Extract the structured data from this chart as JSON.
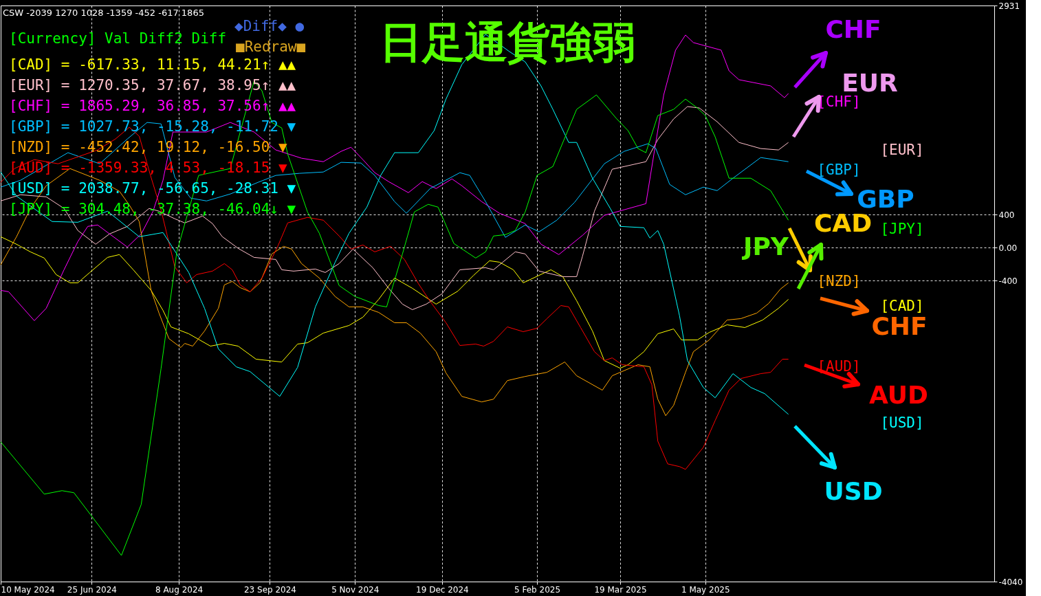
{
  "chart_data": {
    "type": "line",
    "title": "日足通貨強弱",
    "xlim": [
      "2024-05-10",
      "2025-09-24"
    ],
    "ylim": [
      -4040,
      2931
    ],
    "xticks": [
      {
        "value": "2024-05-10",
        "label": "10 May 2024"
      },
      {
        "value": "2024-06-25",
        "label": "25 Jun 2024"
      },
      {
        "value": "2024-08-08",
        "label": "8 Aug 2024"
      },
      {
        "value": "2024-09-23",
        "label": "23 Sep 2024"
      },
      {
        "value": "2024-11-05",
        "label": "5 Nov 2024"
      },
      {
        "value": "2024-12-19",
        "label": "19 Dec 2024"
      },
      {
        "value": "2025-02-05",
        "label": "5 Feb 2025"
      },
      {
        "value": "2025-03-19",
        "label": "19 Mar 2025"
      },
      {
        "value": "2025-05-01",
        "label": "1 May 2025"
      }
    ],
    "yticks": [
      2931,
      400,
      {
        "value": 0,
        "label": "0.00"
      },
      -400,
      -4040
    ],
    "grid": true,
    "legend": false,
    "marker": "none",
    "line_style": "solid",
    "annotations": [
      "CSW -2039 1270 1028 -1359 -452 -617 1865",
      "[Currency] Val Diff2 Diff",
      "[CAD] = -617.33, 11.15, 44.21↑ ▲▲",
      "[EUR] = 1270.35, 37.67, 38.95↑ ▲▲",
      "[CHF] = 1865.29, 36.85, 37.56↑ ▲▲",
      "[GBP] = 1027.73, -15.28, -11.72 ▼",
      "[NZD] = -452.42, 19.12, -16.50 ▼",
      "[AUD] = -1359.33, 4.53, -18.15 ▼",
      "[USD] = 2038.77, -56.65, -28.31 ▼",
      "[JPY] = 304.48, -37.38, -46.04↓ ▼",
      "◆Diff◆ ●",
      "■Redraw■",
      "CHF",
      "EUR",
      "GBP",
      "CAD",
      "JPY",
      "CHF",
      "AUD",
      "USD"
    ],
    "series": [
      {
        "name": "[CAD]",
        "color": "#ffff00",
        "x": [
          "2024-05-10",
          "2024-05-18",
          "2024-05-25",
          "2024-06-01",
          "2024-06-07",
          "2024-06-14",
          "2024-06-18",
          "2024-06-24",
          "2024-07-03",
          "2024-07-09",
          "2024-07-16",
          "2024-07-25",
          "2024-07-31",
          "2024-08-04",
          "2024-08-13",
          "2024-08-24",
          "2024-08-31",
          "2024-09-07",
          "2024-09-16",
          "2024-09-29",
          "2024-10-07",
          "2024-10-12",
          "2024-10-20",
          "2024-11-02",
          "2024-11-09",
          "2024-11-17",
          "2024-11-25",
          "2024-12-04",
          "2024-12-16",
          "2024-12-27",
          "2025-01-04",
          "2025-01-12",
          "2025-01-17",
          "2025-01-24",
          "2025-01-29",
          "2025-02-12",
          "2025-02-18",
          "2025-02-25",
          "2025-03-05",
          "2025-03-11",
          "2025-03-19",
          "2025-03-23",
          "2025-03-31",
          "2025-04-07",
          "2025-04-15",
          "2025-04-19",
          "2025-04-27",
          "2025-05-03",
          "2025-05-12",
          "2025-05-21",
          "2025-05-30",
          "2025-06-07",
          "2025-06-12"
        ],
        "values": [
          133,
          42,
          -50,
          -125,
          -325,
          -425,
          -425,
          -300,
          -117,
          -83,
          -267,
          -516,
          -758,
          -958,
          -1041,
          -1191,
          -1158,
          -1191,
          -1349,
          -1383,
          -1166,
          -1150,
          -1033,
          -941,
          -841,
          -625,
          -367,
          -491,
          -683,
          -525,
          -333,
          -158,
          -175,
          -267,
          -425,
          -267,
          -350,
          -641,
          -1008,
          -1366,
          -1458,
          -1416,
          -1258,
          -1041,
          -983,
          -1116,
          -1116,
          -1025,
          -933,
          -966,
          -875,
          -733,
          -625
        ]
      },
      {
        "name": "[EUR]",
        "color": "#ffc0cb",
        "x": [
          "2024-05-10",
          "2024-05-20",
          "2024-06-02",
          "2024-06-11",
          "2024-06-18",
          "2024-06-27",
          "2024-07-04",
          "2024-07-13",
          "2024-07-24",
          "2024-07-29",
          "2024-08-06",
          "2024-08-11",
          "2024-08-20",
          "2024-08-25",
          "2024-08-30",
          "2024-09-07",
          "2024-09-15",
          "2024-09-26",
          "2024-09-29",
          "2024-10-05",
          "2024-10-16",
          "2024-10-21",
          "2024-10-28",
          "2024-11-04",
          "2024-11-14",
          "2024-11-22",
          "2024-11-29",
          "2024-12-04",
          "2024-12-11",
          "2024-12-19",
          "2024-12-28",
          "2025-01-10",
          "2025-01-14",
          "2025-01-25",
          "2025-01-30",
          "2025-02-06",
          "2025-02-18",
          "2025-02-25",
          "2025-02-28",
          "2025-03-06",
          "2025-03-15",
          "2025-04-01",
          "2025-04-07",
          "2025-04-15",
          "2025-04-22",
          "2025-04-28",
          "2025-05-07",
          "2025-05-18",
          "2025-05-29",
          "2025-06-07",
          "2025-06-12"
        ],
        "values": [
          566,
          641,
          616,
          475,
          208,
          42,
          167,
          258,
          475,
          442,
          350,
          300,
          383,
          292,
          133,
          -8,
          -117,
          -142,
          -267,
          -283,
          -258,
          -300,
          -192,
          -17,
          -242,
          -491,
          -683,
          -750,
          -683,
          -558,
          -267,
          -242,
          -267,
          -50,
          -75,
          -283,
          -350,
          -350,
          -100,
          442,
          950,
          1041,
          1308,
          1558,
          1708,
          1691,
          1524,
          1274,
          1200,
          1183,
          1274
        ]
      },
      {
        "name": "[CHF]",
        "color": "#ff00ff",
        "x": [
          "2024-05-10",
          "2024-05-14",
          "2024-05-27",
          "2024-06-02",
          "2024-06-11",
          "2024-06-18",
          "2024-06-23",
          "2024-06-28",
          "2024-07-04",
          "2024-07-13",
          "2024-07-20",
          "2024-07-26",
          "2024-07-31",
          "2024-08-05",
          "2024-08-22",
          "2024-09-03",
          "2024-09-15",
          "2024-09-26",
          "2024-10-09",
          "2024-10-20",
          "2024-10-29",
          "2024-11-03",
          "2024-11-09",
          "2024-11-15",
          "2024-11-22",
          "2024-12-02",
          "2024-12-09",
          "2024-12-16",
          "2024-12-24",
          "2024-12-29",
          "2025-01-08",
          "2025-01-17",
          "2025-01-30",
          "2025-02-07",
          "2025-02-16",
          "2025-02-28",
          "2025-03-11",
          "2025-04-01",
          "2025-04-06",
          "2025-04-10",
          "2025-04-16",
          "2025-04-21",
          "2025-04-25",
          "2025-05-09",
          "2025-05-13",
          "2025-05-18",
          "2025-06-03",
          "2025-06-10",
          "2025-06-12"
        ],
        "values": [
          -516,
          -533,
          -883,
          -733,
          -267,
          75,
          258,
          275,
          167,
          8,
          167,
          442,
          816,
          1400,
          1400,
          1516,
          1400,
          1183,
          1083,
          1041,
          1166,
          1216,
          1066,
          908,
          800,
          666,
          800,
          716,
          833,
          750,
          558,
          417,
          292,
          42,
          -83,
          150,
          392,
          533,
          1274,
          1849,
          2391,
          2574,
          2482,
          2391,
          2141,
          2033,
          1958,
          1816,
          1866
        ]
      },
      {
        "name": "[GBP]",
        "color": "#00bfff",
        "x": [
          "2024-05-10",
          "2024-05-20",
          "2024-06-13",
          "2024-06-29",
          "2024-07-13",
          "2024-07-23",
          "2024-07-30",
          "2024-08-06",
          "2024-08-14",
          "2024-08-22",
          "2024-09-03",
          "2024-09-17",
          "2024-09-26",
          "2024-10-08",
          "2024-10-20",
          "2024-10-29",
          "2024-11-08",
          "2024-11-15",
          "2024-11-25",
          "2024-12-01",
          "2024-12-13",
          "2024-12-28",
          "2025-01-02",
          "2025-01-10",
          "2025-01-20",
          "2025-01-30",
          "2025-02-06",
          "2025-02-15",
          "2025-02-24",
          "2025-03-11",
          "2025-03-21",
          "2025-04-02",
          "2025-04-06",
          "2025-04-13",
          "2025-04-21",
          "2025-04-30",
          "2025-05-07",
          "2025-05-15",
          "2025-05-29",
          "2025-06-12"
        ],
        "values": [
          733,
          816,
          1150,
          1016,
          1316,
          1516,
          1499,
          850,
          600,
          566,
          650,
          791,
          875,
          900,
          916,
          1033,
          1025,
          875,
          558,
          417,
          716,
          908,
          875,
          558,
          125,
          275,
          192,
          333,
          550,
          1016,
          1166,
          1258,
          1200,
          766,
          641,
          733,
          691,
          841,
          1091,
          1041
        ]
      },
      {
        "name": "[NZD]",
        "color": "#ffa500",
        "x": [
          "2024-05-10",
          "2024-05-18",
          "2024-05-25",
          "2024-06-02",
          "2024-06-14",
          "2024-06-29",
          "2024-07-09",
          "2024-07-14",
          "2024-07-19",
          "2024-07-25",
          "2024-07-29",
          "2024-08-03",
          "2024-08-09",
          "2024-08-11",
          "2024-08-15",
          "2024-08-21",
          "2024-08-28",
          "2024-08-31",
          "2024-09-04",
          "2024-09-08",
          "2024-09-13",
          "2024-09-18",
          "2024-09-24",
          "2024-09-30",
          "2024-10-04",
          "2024-10-09",
          "2024-10-18",
          "2024-10-26",
          "2024-11-02",
          "2024-11-09",
          "2024-11-17",
          "2024-11-25",
          "2024-12-01",
          "2024-12-08",
          "2024-12-16",
          "2024-12-21",
          "2024-12-29",
          "2025-01-08",
          "2025-01-14",
          "2025-01-21",
          "2025-01-30",
          "2025-02-10",
          "2025-02-19",
          "2025-02-25",
          "2025-03-10",
          "2025-03-15",
          "2025-03-28",
          "2025-04-03",
          "2025-04-07",
          "2025-04-11",
          "2025-04-15",
          "2025-04-21",
          "2025-04-25",
          "2025-05-03",
          "2025-05-12",
          "2025-05-19",
          "2025-05-27",
          "2025-06-02",
          "2025-06-08",
          "2025-06-12"
        ],
        "values": [
          -208,
          133,
          475,
          750,
          958,
          816,
          683,
          516,
          317,
          -516,
          -791,
          -1100,
          -1208,
          -1158,
          -1191,
          -1008,
          -733,
          -450,
          -408,
          -483,
          -533,
          -425,
          -75,
          17,
          -17,
          -192,
          -367,
          -591,
          -716,
          -716,
          -783,
          -908,
          -908,
          -1033,
          -1258,
          -1516,
          -1799,
          -1866,
          -1833,
          -1608,
          -1558,
          -1508,
          -1383,
          -1549,
          -1724,
          -1549,
          -1416,
          -1441,
          -1833,
          -2033,
          -1908,
          -1508,
          -1258,
          -1116,
          -875,
          -858,
          -791,
          -675,
          -500,
          -425
        ]
      },
      {
        "name": "[AUD]",
        "color": "#ff0000",
        "x": [
          "2024-05-10",
          "2024-05-17",
          "2024-05-27",
          "2024-06-08",
          "2024-06-28",
          "2024-07-07",
          "2024-07-14",
          "2024-07-19",
          "2024-07-25",
          "2024-07-30",
          "2024-08-06",
          "2024-08-12",
          "2024-08-17",
          "2024-08-25",
          "2024-08-31",
          "2024-09-04",
          "2024-09-08",
          "2024-09-13",
          "2024-09-19",
          "2024-09-27",
          "2024-10-02",
          "2024-10-12",
          "2024-10-20",
          "2024-10-28",
          "2024-11-03",
          "2024-11-09",
          "2024-11-15",
          "2024-11-23",
          "2024-11-30",
          "2024-12-07",
          "2024-12-13",
          "2024-12-21",
          "2024-12-28",
          "2025-01-05",
          "2025-01-09",
          "2025-01-14",
          "2025-01-21",
          "2025-01-29",
          "2025-02-05",
          "2025-02-10",
          "2025-02-17",
          "2025-02-21",
          "2025-02-27",
          "2025-03-06",
          "2025-03-11",
          "2025-03-15",
          "2025-03-20",
          "2025-03-31",
          "2025-04-04",
          "2025-04-07",
          "2025-04-12",
          "2025-04-18",
          "2025-04-21",
          "2025-04-30",
          "2025-05-06",
          "2025-05-13",
          "2025-05-19",
          "2025-05-29",
          "2025-06-03",
          "2025-06-09",
          "2025-06-12"
        ],
        "values": [
          791,
          958,
          1066,
          1016,
          1183,
          1316,
          1458,
          1349,
          850,
          458,
          -233,
          -425,
          -325,
          -283,
          -192,
          -267,
          -450,
          -533,
          -367,
          17,
          300,
          367,
          333,
          142,
          -17,
          33,
          -50,
          17,
          -142,
          -433,
          -650,
          -908,
          -1183,
          -1166,
          -1191,
          -1133,
          -958,
          -1016,
          -975,
          -858,
          -700,
          -716,
          -966,
          -1258,
          -1366,
          -1333,
          -1416,
          -1441,
          -1658,
          -2341,
          -2616,
          -2649,
          -2682,
          -2416,
          -2091,
          -1724,
          -1583,
          -1524,
          -1508,
          -1349,
          -1349
        ]
      },
      {
        "name": "[USD]",
        "color": "#00ffff",
        "x": [
          "2024-05-10",
          "2024-05-18",
          "2024-06-05",
          "2024-06-18",
          "2024-07-03",
          "2024-07-19",
          "2024-07-31",
          "2024-08-13",
          "2024-08-21",
          "2024-08-28",
          "2024-09-06",
          "2024-09-13",
          "2024-09-28",
          "2024-10-07",
          "2024-10-16",
          "2024-10-26",
          "2024-11-02",
          "2024-11-11",
          "2024-11-18",
          "2024-11-25",
          "2024-12-07",
          "2024-12-15",
          "2024-12-21",
          "2024-12-29",
          "2025-01-10",
          "2025-01-22",
          "2025-01-30",
          "2025-02-07",
          "2025-02-13",
          "2025-02-21",
          "2025-02-25",
          "2025-03-05",
          "2025-03-14",
          "2025-03-19",
          "2025-03-31",
          "2025-04-03",
          "2025-04-07",
          "2025-04-10",
          "2025-04-18",
          "2025-04-22",
          "2025-04-30",
          "2025-05-06",
          "2025-05-15",
          "2025-05-24",
          "2025-05-31",
          "2025-06-12"
        ],
        "values": [
          917,
          625,
          317,
          308,
          442,
          133,
          183,
          -300,
          -733,
          -1225,
          -1441,
          -1499,
          -1799,
          -1449,
          -716,
          -175,
          175,
          491,
          875,
          1150,
          1150,
          1416,
          1799,
          2216,
          2582,
          2374,
          2249,
          1958,
          1674,
          1274,
          1274,
          841,
          475,
          258,
          242,
          117,
          208,
          42,
          -825,
          -1366,
          -1691,
          -1816,
          -1524,
          -1691,
          -1766,
          -2016
        ]
      },
      {
        "name": "[JPY]",
        "color": "#00ff00",
        "x": [
          "2024-05-10",
          "2024-06-01",
          "2024-06-10",
          "2024-06-16",
          "2024-07-10",
          "2024-07-20",
          "2024-07-30",
          "2024-08-07",
          "2024-08-18",
          "2024-09-03",
          "2024-09-15",
          "2024-09-19",
          "2024-09-24",
          "2024-09-29",
          "2024-10-02",
          "2024-10-12",
          "2024-10-18",
          "2024-10-28",
          "2024-11-05",
          "2024-11-08",
          "2024-11-17",
          "2024-11-21",
          "2024-11-29",
          "2024-12-05",
          "2024-12-12",
          "2024-12-17",
          "2024-12-25",
          "2025-01-05",
          "2025-01-10",
          "2025-01-14",
          "2025-01-20",
          "2025-01-25",
          "2025-01-30",
          "2025-02-05",
          "2025-02-13",
          "2025-02-25",
          "2025-03-07",
          "2025-03-17",
          "2025-03-23",
          "2025-03-28",
          "2025-04-01",
          "2025-04-07",
          "2025-04-15",
          "2025-04-21",
          "2025-04-27",
          "2025-05-01",
          "2025-05-06",
          "2025-05-13",
          "2025-05-24",
          "2025-06-03",
          "2025-06-12"
        ],
        "values": [
          -2349,
          -2982,
          -2940,
          -2965,
          -3724,
          -3107,
          -1466,
          -50,
          875,
          958,
          2016,
          1899,
          1516,
          1449,
          1133,
          433,
          175,
          -458,
          -591,
          -616,
          -700,
          -716,
          -75,
          433,
          525,
          491,
          50,
          -125,
          -50,
          142,
          158,
          208,
          433,
          875,
          983,
          1674,
          1849,
          1566,
          1416,
          1200,
          1150,
          1599,
          1674,
          1799,
          1691,
          1599,
          1341,
          841,
          841,
          691,
          333
        ]
      }
    ]
  }
}
